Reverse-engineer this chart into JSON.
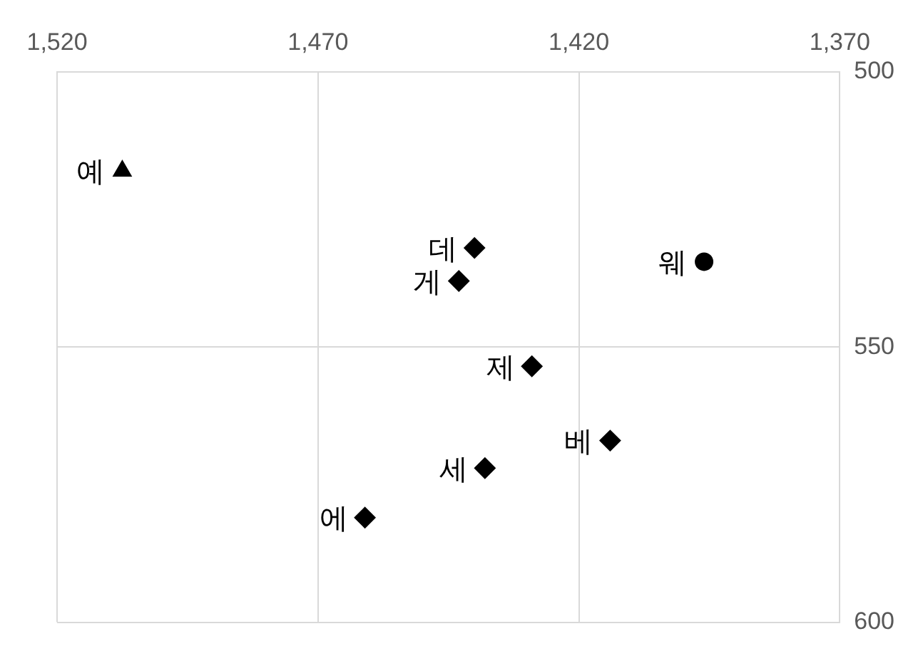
{
  "chart_data": {
    "type": "scatter",
    "legend": false,
    "grid": true,
    "xlim": [
      1520,
      1370
    ],
    "xticks": [
      {
        "value": 1520,
        "label": "1,520"
      },
      {
        "value": 1470,
        "label": "1,470"
      },
      {
        "value": 1420,
        "label": "1,420"
      },
      {
        "value": 1370,
        "label": "1,370"
      }
    ],
    "ylim": [
      600,
      500
    ],
    "yticks": [
      500,
      550,
      600
    ],
    "series": [
      {
        "name": "예",
        "color": "#000000",
        "marker": "triangle",
        "x": [
          1507.5
        ],
        "values": [
          518
        ]
      },
      {
        "name": "데",
        "color": "#000000",
        "marker": "diamond",
        "x": [
          1440
        ],
        "values": [
          532
        ]
      },
      {
        "name": "게",
        "color": "#000000",
        "marker": "diamond",
        "x": [
          1443
        ],
        "values": [
          538
        ]
      },
      {
        "name": "웨",
        "color": "#000000",
        "marker": "circle",
        "x": [
          1396
        ],
        "values": [
          534.5
        ]
      },
      {
        "name": "제",
        "color": "#000000",
        "marker": "diamond",
        "x": [
          1429
        ],
        "values": [
          553.5
        ]
      },
      {
        "name": "베",
        "color": "#000000",
        "marker": "diamond",
        "x": [
          1414
        ],
        "values": [
          567
        ]
      },
      {
        "name": "세",
        "color": "#000000",
        "marker": "diamond",
        "x": [
          1438
        ],
        "values": [
          572
        ]
      },
      {
        "name": "에",
        "color": "#000000",
        "marker": "diamond",
        "x": [
          1461
        ],
        "values": [
          581
        ]
      }
    ]
  }
}
